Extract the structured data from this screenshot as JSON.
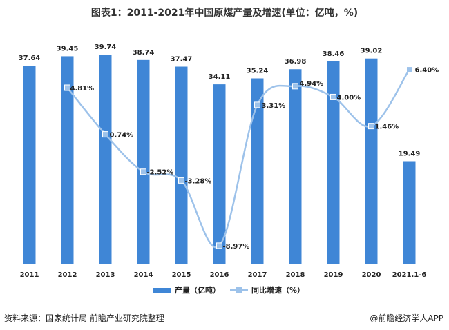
{
  "title": "图表1：2011-2021年中国原煤产量及增速(单位：亿吨，%)",
  "source": "资料来源：国家统计局 前瞻产业研究院整理",
  "credit": "@前瞻经济学人APP",
  "chart_data": {
    "type": "bar+line",
    "categories": [
      "2011",
      "2012",
      "2013",
      "2014",
      "2015",
      "2016",
      "2017",
      "2018",
      "2019",
      "2020",
      "2021.1-6"
    ],
    "series": [
      {
        "name": "产量（亿吨）",
        "kind": "bar",
        "axis": "left",
        "values": [
          37.64,
          39.45,
          39.74,
          38.74,
          37.47,
          34.11,
          35.24,
          36.98,
          38.46,
          39.02,
          19.49
        ],
        "labels": [
          "37.64",
          "39.45",
          "39.74",
          "38.74",
          "37.47",
          "34.11",
          "35.24",
          "36.98",
          "38.46",
          "39.02",
          "19.49"
        ]
      },
      {
        "name": "同比增速（%）",
        "kind": "line",
        "axis": "right",
        "values": [
          null,
          4.81,
          0.74,
          -2.52,
          -3.28,
          -8.97,
          3.31,
          4.94,
          4.0,
          1.46,
          6.4
        ],
        "labels": [
          null,
          "4.81%",
          "0.74%",
          "-2.52%",
          "-3.28%",
          "-8.97%",
          "3.31%",
          "4.94%",
          "4.00%",
          "1.46%",
          "6.40%"
        ]
      }
    ],
    "left_axis_range": [
      0,
      42
    ],
    "right_axis_range": [
      -10,
      8
    ],
    "colors": {
      "bar": "#3f86d6",
      "line": "#9dc2ea",
      "marker": "#9dc2ea"
    },
    "legend": [
      {
        "label": "产量（亿吨）",
        "kind": "bar"
      },
      {
        "label": "同比增速（%）",
        "kind": "line"
      }
    ]
  }
}
